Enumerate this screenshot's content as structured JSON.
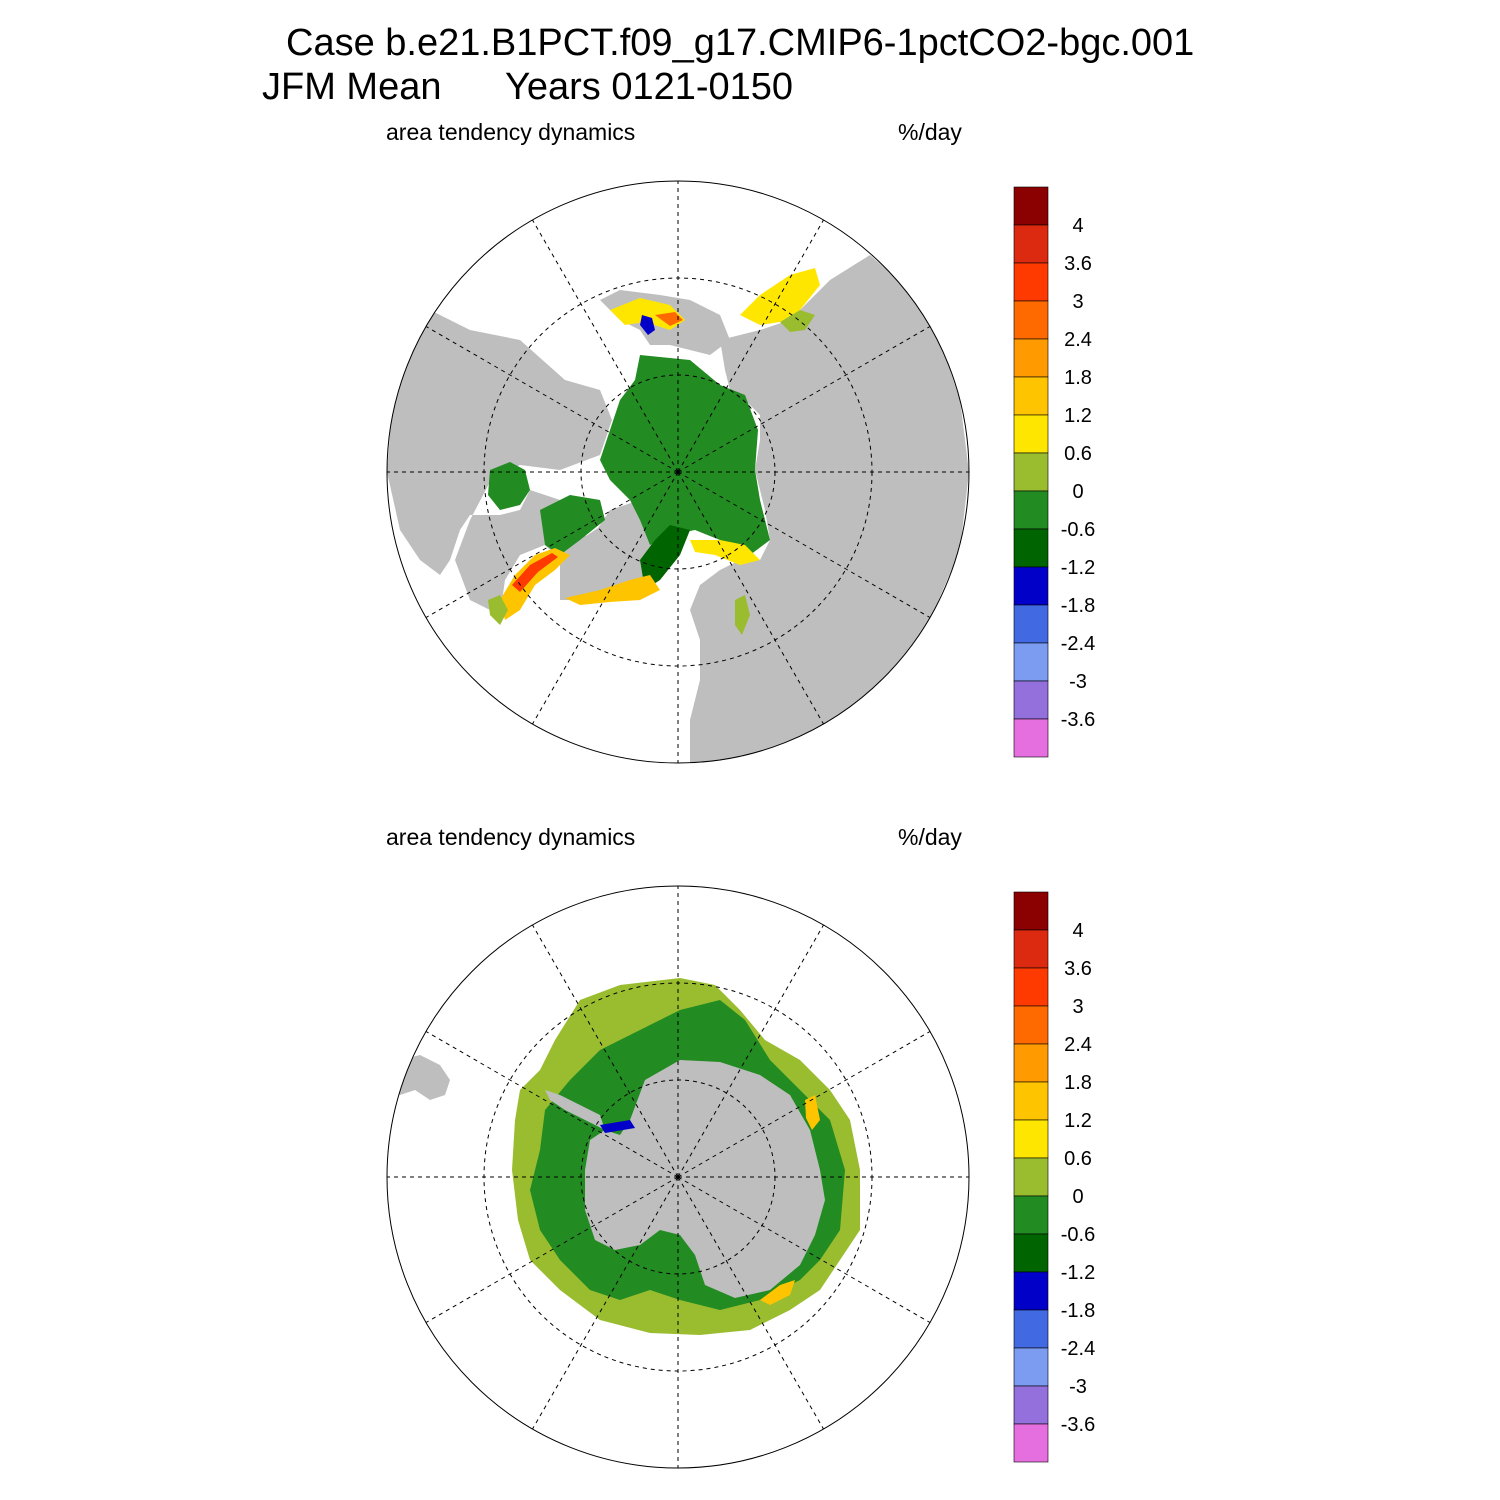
{
  "title": {
    "line1": "Case b.e21.B1PCT.f09_g17.CMIP6-1pctCO2-bgc.001",
    "line2_season": "JFM Mean",
    "line2_years": "Years 0121-0150"
  },
  "panels": [
    {
      "hemisphere": "north",
      "variable_label": "area tendency dynamics",
      "units_label": "%/day"
    },
    {
      "hemisphere": "south",
      "variable_label": "area tendency dynamics",
      "units_label": "%/day"
    }
  ],
  "colorbar": {
    "levels": [
      "4",
      "3.6",
      "3",
      "2.4",
      "1.8",
      "1.2",
      "0.6",
      "0",
      "-0.6",
      "-1.2",
      "-1.8",
      "-2.4",
      "-3",
      "-3.6"
    ],
    "colors": [
      "#8b0000",
      "#dc2a10",
      "#ff3a00",
      "#ff6a00",
      "#ff9a00",
      "#ffc400",
      "#ffe600",
      "#9abd30",
      "#228b22",
      "#006400",
      "#0000c8",
      "#4169e1",
      "#7b9cf0",
      "#9370db",
      "#e66fe0"
    ]
  },
  "colors": {
    "land": "#bebebe",
    "ocean": "#ffffff",
    "grid": "#000000"
  }
}
